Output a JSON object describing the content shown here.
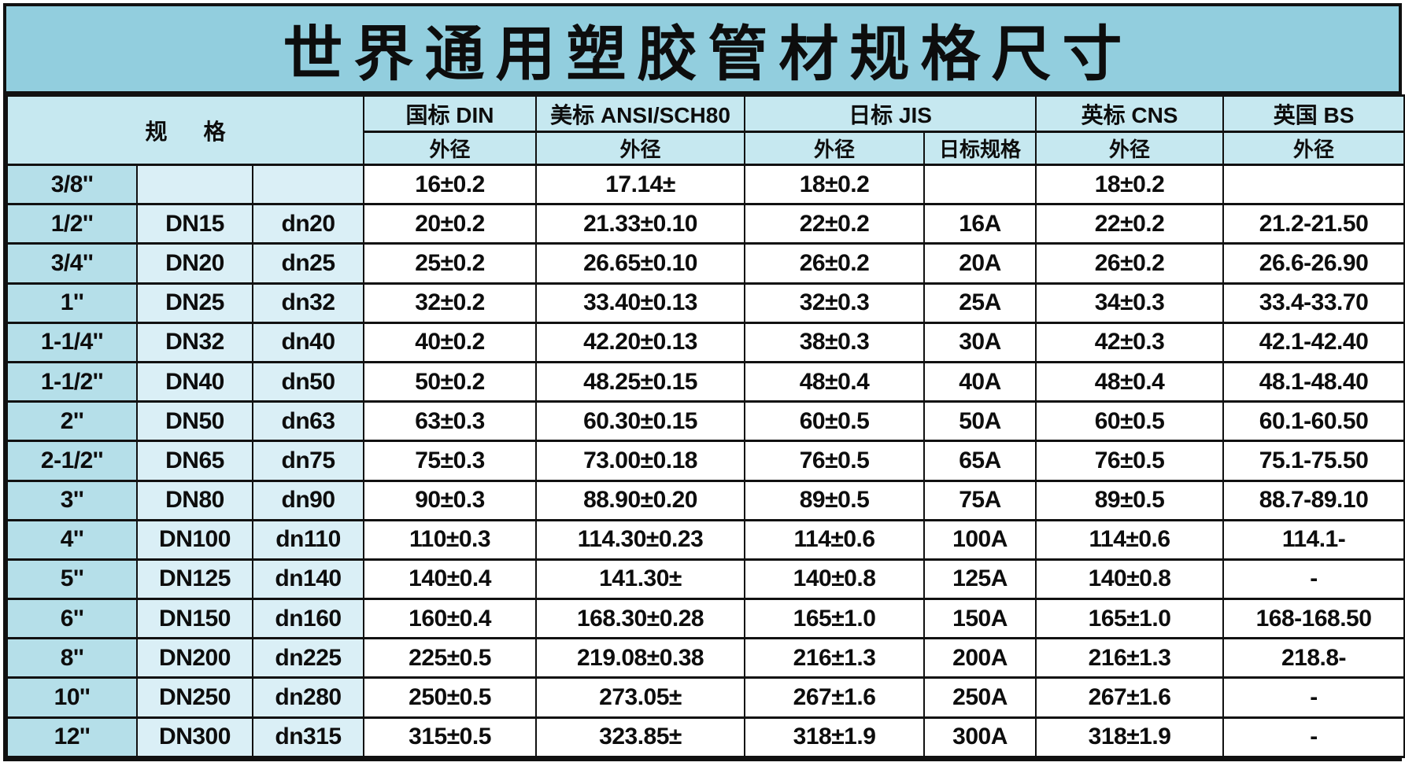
{
  "title": "世界通用塑胶管材规格尺寸",
  "colors": {
    "title_bg": "#92cede",
    "header_bg": "#c6e8f0",
    "col1_bg": "#b5dfe9",
    "col23_bg": "#daeff6",
    "data_bg": "#ffffff",
    "border": "#111111",
    "text": "#0d0d0d"
  },
  "table": {
    "spec_header": "规格",
    "group_headers": [
      "国标 DIN",
      "美标 ANSI/SCH80",
      "日标 JIS",
      "英标 CNS",
      "英国 BS"
    ],
    "sub_headers": [
      "外径",
      "外径",
      "外径",
      "日标规格",
      "外径",
      "外径"
    ],
    "rows": [
      [
        "3/8''",
        "",
        "",
        "16±0.2",
        "17.14±",
        "18±0.2",
        "",
        "18±0.2",
        ""
      ],
      [
        "1/2''",
        "DN15",
        "dn20",
        "20±0.2",
        "21.33±0.10",
        "22±0.2",
        "16A",
        "22±0.2",
        "21.2-21.50"
      ],
      [
        "3/4''",
        "DN20",
        "dn25",
        "25±0.2",
        "26.65±0.10",
        "26±0.2",
        "20A",
        "26±0.2",
        "26.6-26.90"
      ],
      [
        "1''",
        "DN25",
        "dn32",
        "32±0.2",
        "33.40±0.13",
        "32±0.3",
        "25A",
        "34±0.3",
        "33.4-33.70"
      ],
      [
        "1-1/4''",
        "DN32",
        "dn40",
        "40±0.2",
        "42.20±0.13",
        "38±0.3",
        "30A",
        "42±0.3",
        "42.1-42.40"
      ],
      [
        "1-1/2''",
        "DN40",
        "dn50",
        "50±0.2",
        "48.25±0.15",
        "48±0.4",
        "40A",
        "48±0.4",
        "48.1-48.40"
      ],
      [
        "2''",
        "DN50",
        "dn63",
        "63±0.3",
        "60.30±0.15",
        "60±0.5",
        "50A",
        "60±0.5",
        "60.1-60.50"
      ],
      [
        "2-1/2''",
        "DN65",
        "dn75",
        "75±0.3",
        "73.00±0.18",
        "76±0.5",
        "65A",
        "76±0.5",
        "75.1-75.50"
      ],
      [
        "3''",
        "DN80",
        "dn90",
        "90±0.3",
        "88.90±0.20",
        "89±0.5",
        "75A",
        "89±0.5",
        "88.7-89.10"
      ],
      [
        "4''",
        "DN100",
        "dn110",
        "110±0.3",
        "114.30±0.23",
        "114±0.6",
        "100A",
        "114±0.6",
        "114.1-"
      ],
      [
        "5''",
        "DN125",
        "dn140",
        "140±0.4",
        "141.30±",
        "140±0.8",
        "125A",
        "140±0.8",
        "-"
      ],
      [
        "6''",
        "DN150",
        "dn160",
        "160±0.4",
        "168.30±0.28",
        "165±1.0",
        "150A",
        "165±1.0",
        "168-168.50"
      ],
      [
        "8''",
        "DN200",
        "dn225",
        "225±0.5",
        "219.08±0.38",
        "216±1.3",
        "200A",
        "216±1.3",
        "218.8-"
      ],
      [
        "10''",
        "DN250",
        "dn280",
        "250±0.5",
        "273.05±",
        "267±1.6",
        "250A",
        "267±1.6",
        "-"
      ],
      [
        "12''",
        "DN300",
        "dn315",
        "315±0.5",
        "323.85±",
        "318±1.9",
        "300A",
        "318±1.9",
        "-"
      ]
    ]
  }
}
